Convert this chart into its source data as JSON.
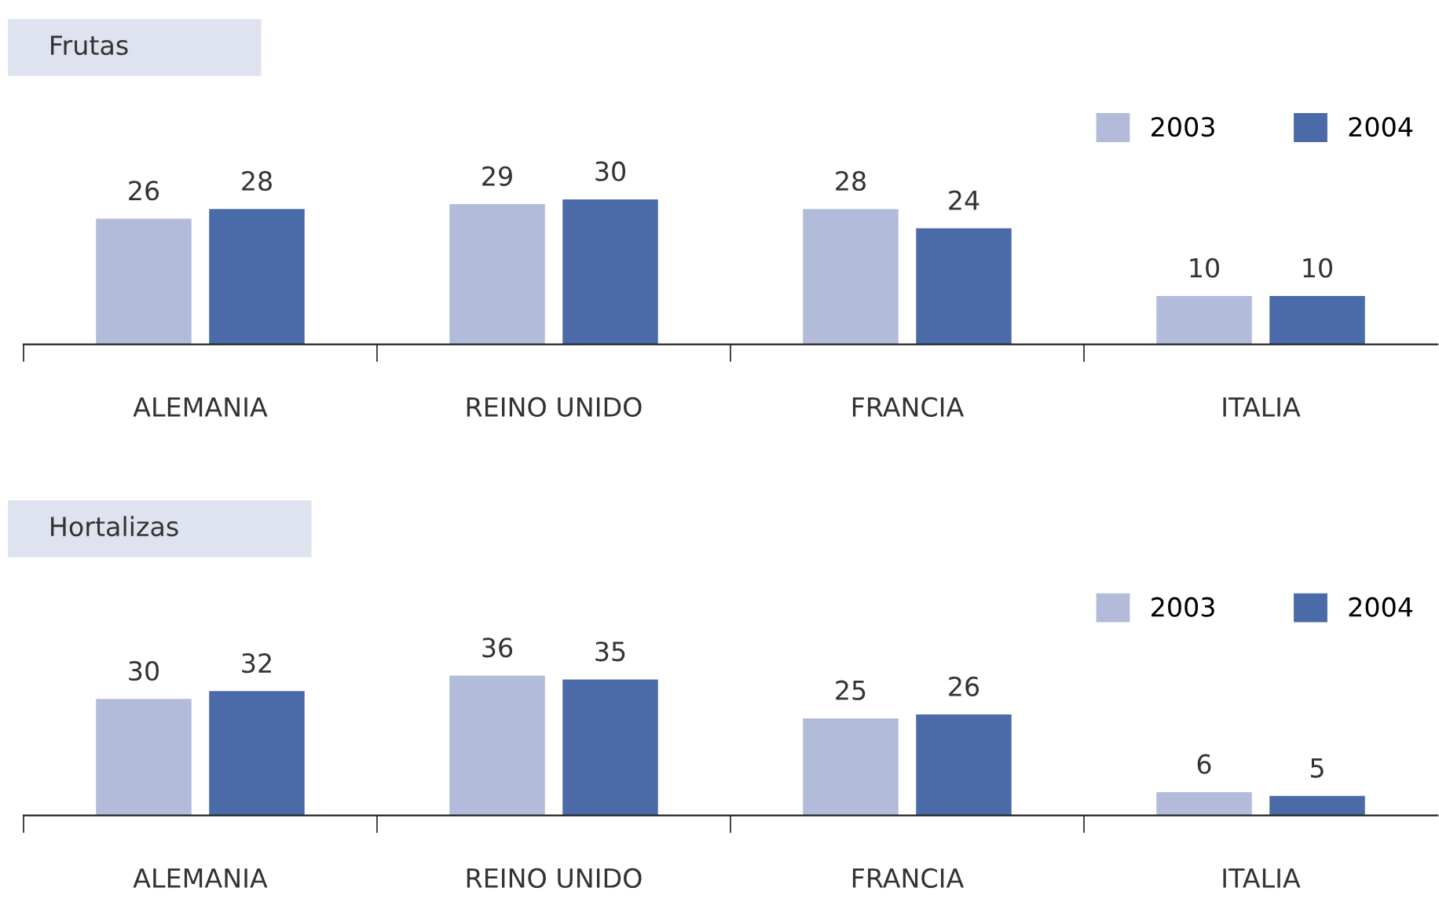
{
  "chart_data": [
    {
      "type": "bar",
      "title": "Frutas",
      "categories": [
        "ALEMANIA",
        "REINO UNIDO",
        "FRANCIA",
        "ITALIA"
      ],
      "series": [
        {
          "name": "2003",
          "color": "#b3bbdb",
          "values": [
            26,
            29,
            28,
            10
          ]
        },
        {
          "name": "2004",
          "color": "#4a6aa8",
          "values": [
            28,
            30,
            24,
            10
          ]
        }
      ],
      "data_labels": true,
      "legend": "top right",
      "grid": false
    },
    {
      "type": "bar",
      "title": "Hortalizas",
      "categories": [
        "ALEMANIA",
        "REINO UNIDO",
        "FRANCIA",
        "ITALIA"
      ],
      "series": [
        {
          "name": "2003",
          "color": "#b3bbdb",
          "values": [
            30,
            36,
            25,
            6
          ],
          "value_labels": [
            "30",
            "36",
            "25",
            "6"
          ]
        },
        {
          "name": "2004",
          "color": "#4a6aa8",
          "values": [
            32,
            35,
            26,
            5
          ],
          "value_labels": [
            "32",
            "35",
            "26",
            "5"
          ]
        }
      ],
      "legend": "top right",
      "grid": false
    }
  ]
}
